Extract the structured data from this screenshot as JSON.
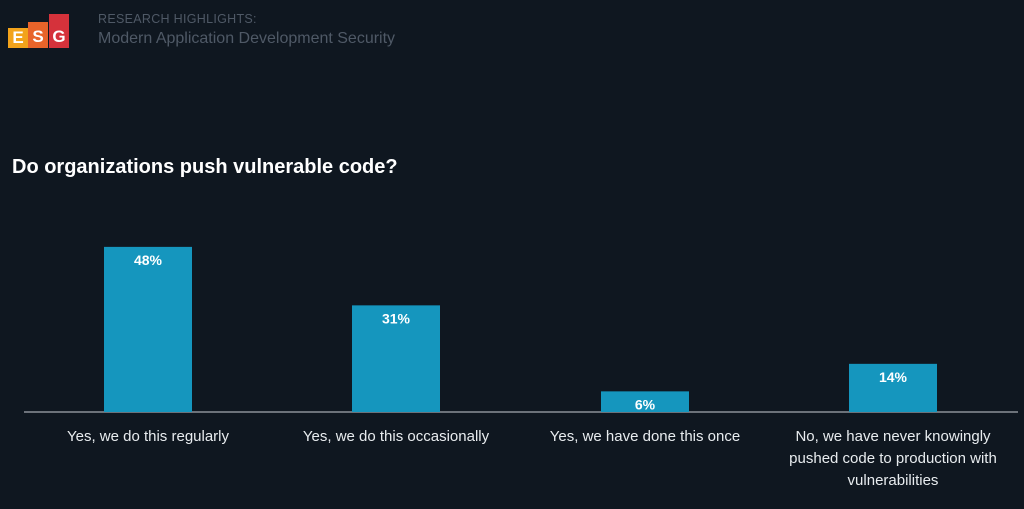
{
  "header": {
    "logo_letters": [
      "E",
      "S",
      "G"
    ],
    "kicker": "RESEARCH HIGHLIGHTS:",
    "subtitle": "Modern Application Development Security"
  },
  "colors": {
    "bar": "#1596be",
    "baseline": "#c9ced3",
    "background": "#0f1720"
  },
  "chart_data": {
    "type": "bar",
    "title": "Do organizations push vulnerable code?",
    "categories": [
      "Yes, we do this regularly",
      "Yes, we do this occasionally",
      "Yes, we have done this once",
      "No, we have never knowingly pushed code to production with vulnerabilities"
    ],
    "values": [
      48,
      31,
      6,
      14
    ],
    "value_labels": [
      "48%",
      "31%",
      "6%",
      "14%"
    ],
    "ylim": [
      0,
      50
    ],
    "grid": false,
    "legend": "none"
  }
}
